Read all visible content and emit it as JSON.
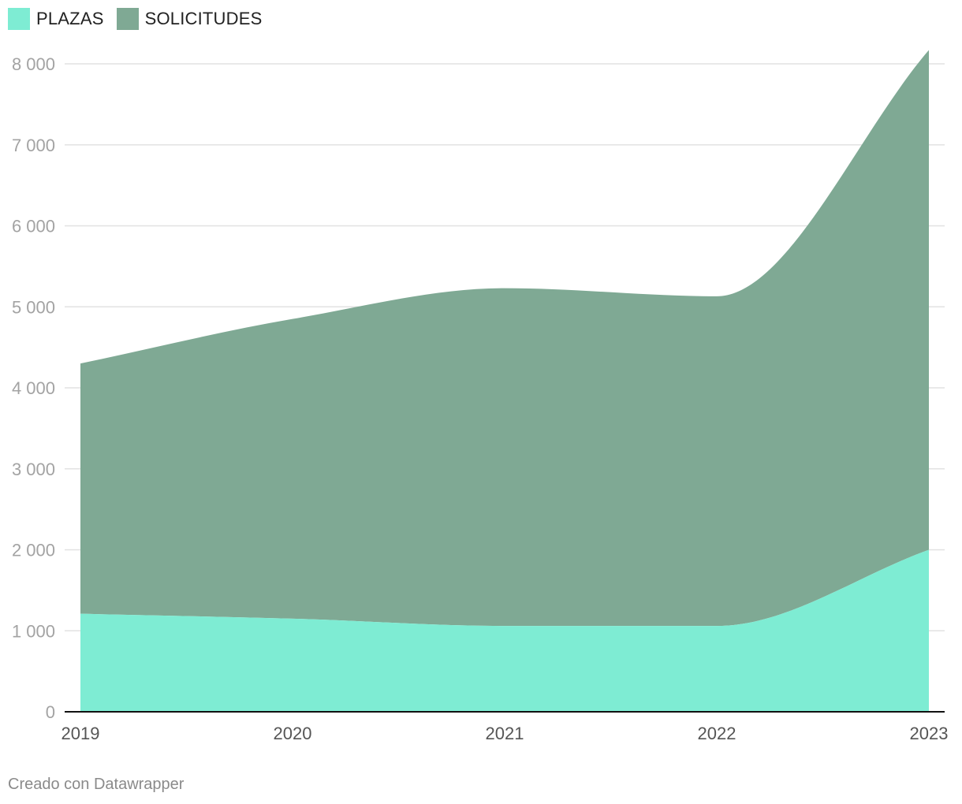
{
  "chart_data": {
    "type": "area",
    "stacked": true,
    "x": [
      "2019",
      "2020",
      "2021",
      "2022",
      "2023"
    ],
    "series": [
      {
        "name": "PLAZAS",
        "values": [
          1210,
          1150,
          1060,
          1060,
          2000
        ],
        "color": "#7eecd3"
      },
      {
        "name": "SOLICITUDES",
        "values": [
          3090,
          3700,
          4170,
          4070,
          6170
        ],
        "color": "#7fa994"
      }
    ],
    "y_ticks": [
      "0",
      "1 000",
      "2 000",
      "3 000",
      "4 000",
      "5 000",
      "6 000",
      "7 000",
      "8 000"
    ],
    "ylim": [
      0,
      8000
    ],
    "grid": true,
    "legend_position": "top-left"
  },
  "footer": {
    "credit": "Creado con Datawrapper"
  }
}
